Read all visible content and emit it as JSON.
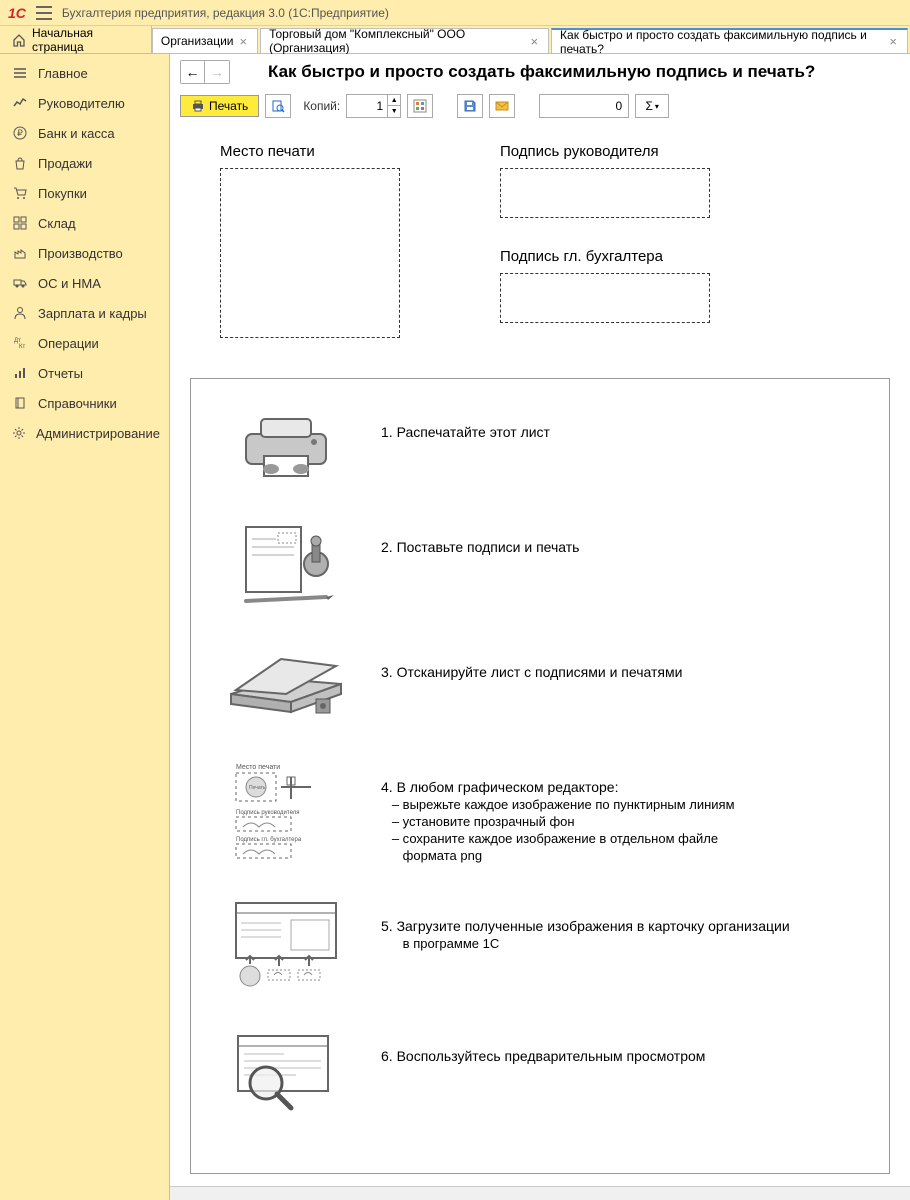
{
  "app": {
    "logo_text": "1C",
    "title": "Бухгалтерия предприятия, редакция 3.0  (1С:Предприятие)"
  },
  "home_tab": "Начальная страница",
  "tabs": [
    {
      "label": "Организации",
      "active": false
    },
    {
      "label": "Торговый дом \"Комплексный\" ООО (Организация)",
      "active": false
    },
    {
      "label": "Как быстро и просто создать факсимильную подпись и печать?",
      "active": true
    }
  ],
  "sidebar": [
    {
      "icon": "menu",
      "label": "Главное"
    },
    {
      "icon": "chart",
      "label": "Руководителю"
    },
    {
      "icon": "ruble",
      "label": "Банк и касса"
    },
    {
      "icon": "bag",
      "label": "Продажи"
    },
    {
      "icon": "cart",
      "label": "Покупки"
    },
    {
      "icon": "grid",
      "label": "Склад"
    },
    {
      "icon": "factory",
      "label": "Производство"
    },
    {
      "icon": "truck",
      "label": "ОС и НМА"
    },
    {
      "icon": "person",
      "label": "Зарплата и кадры"
    },
    {
      "icon": "dtkt",
      "label": "Операции"
    },
    {
      "icon": "bars",
      "label": "Отчеты"
    },
    {
      "icon": "book",
      "label": "Справочники"
    },
    {
      "icon": "gear",
      "label": "Администрирование"
    }
  ],
  "page": {
    "title": "Как быстро и просто создать факсимильную подпись и печать?"
  },
  "toolbar": {
    "print": "Печать",
    "copies_label": "Копий:",
    "copies_value": "1",
    "number_value": "0",
    "sum_symbol": "Σ"
  },
  "boxes": {
    "stamp_label": "Место печати",
    "sig1_label": "Подпись руководителя",
    "sig2_label": "Подпись гл. бухгалтера"
  },
  "steps": [
    {
      "n": "1.",
      "text": "Распечатайте этот лист"
    },
    {
      "n": "2.",
      "text": "Поставьте подписи и печать"
    },
    {
      "n": "3.",
      "text": "Отсканируйте лист с подписями и печатями"
    },
    {
      "n": "4.",
      "text": "В любом графическом редакторе:",
      "subs": [
        "– вырежьте каждое изображение по пунктирным линиям",
        "– установите прозрачный фон",
        "– сохраните каждое изображение в отдельном файле",
        "   формата png"
      ]
    },
    {
      "n": "5.",
      "text": "Загрузите полученные изображения в карточку организации",
      "subs": [
        "   в программе 1С"
      ]
    },
    {
      "n": "6.",
      "text": "Воспользуйтесь предварительным просмотром"
    }
  ],
  "colors": {
    "accent_bg": "#ffedad",
    "print_btn": "#ffeb3b",
    "logo": "#d6262a"
  }
}
